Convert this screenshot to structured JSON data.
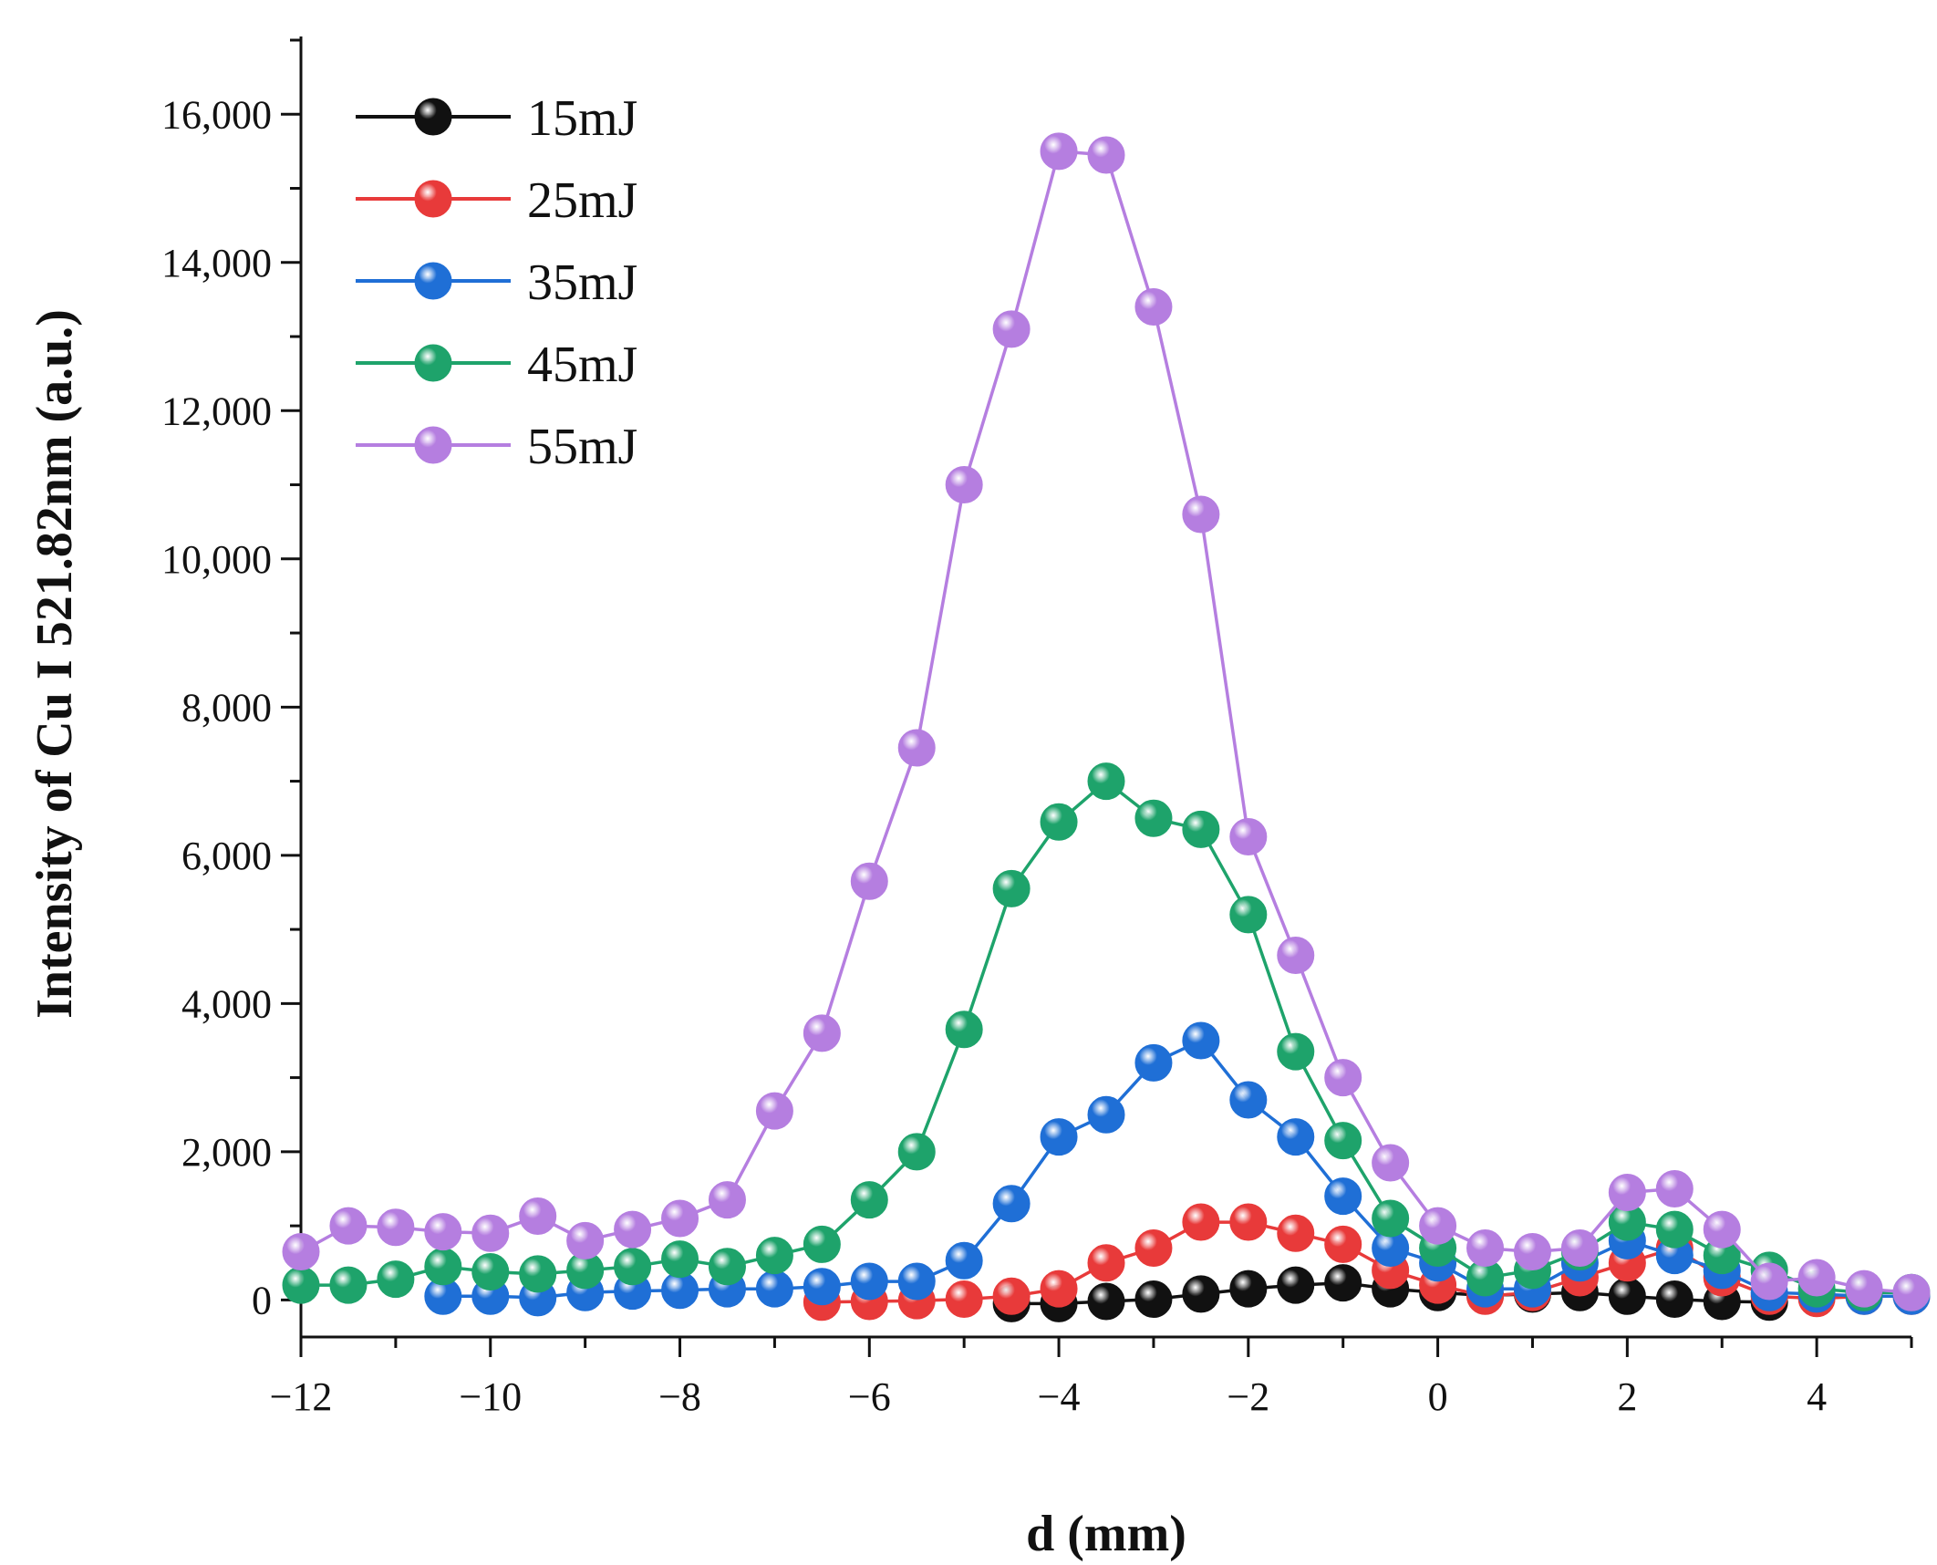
{
  "chart_data": {
    "type": "line",
    "title": "",
    "xlabel": "d (mm)",
    "ylabel": "Intensity of Cu I 521.82nm (a.u.)",
    "xlim": [
      -12,
      5
    ],
    "ylim": [
      -500,
      17000
    ],
    "xticks": [
      -12,
      -10,
      -8,
      -6,
      -4,
      -2,
      0,
      2,
      4
    ],
    "xtick_labels": [
      "−12",
      "−10",
      "−8",
      "−6",
      "−4",
      "−2",
      "0",
      "2",
      "4"
    ],
    "yticks": [
      0,
      2000,
      4000,
      6000,
      8000,
      10000,
      12000,
      14000,
      16000
    ],
    "ytick_labels": [
      "0",
      "2,000",
      "4,000",
      "6,000",
      "8,000",
      "10,000",
      "12,000",
      "14,000",
      "16,000"
    ],
    "grid": false,
    "legend_position": "top-left",
    "series": [
      {
        "name": "15mJ",
        "color": "#111111",
        "x": [
          -4.5,
          -4,
          -3.5,
          -3,
          -2.5,
          -2,
          -1.5,
          -1,
          -0.5,
          0,
          0.5,
          1,
          1.5,
          2,
          2.5,
          3,
          3.5
        ],
        "values": [
          -50,
          -50,
          -20,
          10,
          80,
          150,
          200,
          230,
          150,
          100,
          60,
          80,
          100,
          50,
          10,
          -20,
          -30
        ]
      },
      {
        "name": "25mJ",
        "color": "#e83a3a",
        "x": [
          -6.5,
          -6,
          -5.5,
          -5,
          -4.5,
          -4,
          -3.5,
          -3,
          -2.5,
          -2,
          -1.5,
          -1,
          -0.5,
          0,
          0.5,
          1,
          1.5,
          2,
          2.5,
          3,
          3.5,
          4,
          4.5,
          5
        ],
        "values": [
          -30,
          -20,
          -10,
          10,
          50,
          150,
          500,
          700,
          1050,
          1050,
          900,
          750,
          400,
          200,
          50,
          100,
          300,
          500,
          700,
          300,
          50,
          20,
          50,
          50
        ]
      },
      {
        "name": "35mJ",
        "color": "#1f6fd6",
        "x": [
          -10.5,
          -10,
          -9.5,
          -9,
          -8.5,
          -8,
          -7.5,
          -7,
          -6.5,
          -6,
          -5.5,
          -5,
          -4.5,
          -4,
          -3.5,
          -3,
          -2.5,
          -2,
          -1.5,
          -1,
          -0.5,
          0,
          0.5,
          1,
          1.5,
          2,
          2.5,
          3,
          3.5,
          4,
          4.5,
          5
        ],
        "values": [
          50,
          50,
          30,
          100,
          120,
          130,
          150,
          150,
          180,
          250,
          250,
          530,
          1300,
          2200,
          2500,
          3200,
          3500,
          2700,
          2200,
          1400,
          700,
          500,
          150,
          150,
          500,
          800,
          600,
          400,
          100,
          80,
          50,
          50
        ]
      },
      {
        "name": "45mJ",
        "color": "#1ea36b",
        "x": [
          -12,
          -11.5,
          -11,
          -10.5,
          -10,
          -9.5,
          -9,
          -8.5,
          -8,
          -7.5,
          -7,
          -6.5,
          -6,
          -5.5,
          -5,
          -4.5,
          -4,
          -3.5,
          -3,
          -2.5,
          -2,
          -1.5,
          -1,
          -0.5,
          0,
          0.5,
          1,
          1.5,
          2,
          2.5,
          3,
          3.5,
          4,
          4.5,
          5
        ],
        "values": [
          200,
          200,
          280,
          450,
          380,
          350,
          400,
          450,
          550,
          450,
          600,
          750,
          1350,
          2000,
          3650,
          5550,
          6450,
          7000,
          6500,
          6350,
          5200,
          3350,
          2150,
          1100,
          700,
          300,
          400,
          650,
          1050,
          950,
          600,
          400,
          150,
          100,
          100
        ]
      },
      {
        "name": "55mJ",
        "color": "#b57ee0",
        "x": [
          -12,
          -11.5,
          -11,
          -10.5,
          -10,
          -9.5,
          -9,
          -8.5,
          -8,
          -7.5,
          -7,
          -6.5,
          -6,
          -5.5,
          -5,
          -4.5,
          -4,
          -3.5,
          -3,
          -2.5,
          -2,
          -1.5,
          -1,
          -0.5,
          0,
          0.5,
          1,
          1.5,
          2,
          2.5,
          3,
          3.5,
          4,
          4.5,
          5
        ],
        "values": [
          650,
          1000,
          980,
          920,
          900,
          1130,
          800,
          950,
          1100,
          1350,
          2550,
          3600,
          5650,
          7450,
          11000,
          13100,
          15500,
          15450,
          13400,
          10600,
          6250,
          4650,
          3000,
          1850,
          1000,
          700,
          650,
          700,
          1450,
          1500,
          950,
          250,
          300,
          150,
          100
        ]
      }
    ]
  }
}
